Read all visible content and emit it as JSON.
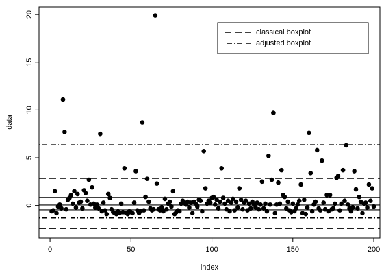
{
  "chart_data": {
    "type": "scatter",
    "xlabel": "index",
    "ylabel": "data",
    "x": [
      1,
      2,
      3,
      4,
      5,
      6,
      7,
      8,
      9,
      10,
      11,
      12,
      13,
      14,
      15,
      16,
      17,
      18,
      19,
      20,
      21,
      22,
      23,
      24,
      25,
      26,
      27,
      28,
      29,
      30,
      31,
      32,
      33,
      34,
      35,
      36,
      37,
      38,
      39,
      40,
      41,
      42,
      43,
      44,
      45,
      46,
      47,
      48,
      49,
      50,
      51,
      52,
      53,
      54,
      55,
      56,
      57,
      58,
      59,
      60,
      61,
      62,
      63,
      64,
      65,
      66,
      67,
      68,
      69,
      70,
      71,
      72,
      73,
      74,
      75,
      76,
      77,
      78,
      79,
      80,
      81,
      82,
      83,
      84,
      85,
      86,
      87,
      88,
      89,
      90,
      91,
      92,
      93,
      94,
      95,
      96,
      97,
      98,
      99,
      100,
      101,
      102,
      103,
      104,
      105,
      106,
      107,
      108,
      109,
      110,
      111,
      112,
      113,
      114,
      115,
      116,
      117,
      118,
      119,
      120,
      121,
      122,
      123,
      124,
      125,
      126,
      127,
      128,
      129,
      130,
      131,
      132,
      133,
      134,
      135,
      136,
      137,
      138,
      139,
      140,
      141,
      142,
      143,
      144,
      145,
      146,
      147,
      148,
      149,
      150,
      151,
      152,
      153,
      154,
      155,
      156,
      157,
      158,
      159,
      160,
      161,
      162,
      163,
      164,
      165,
      166,
      167,
      168,
      169,
      170,
      171,
      172,
      173,
      174,
      175,
      176,
      177,
      178,
      179,
      180,
      181,
      182,
      183,
      184,
      185,
      186,
      187,
      188,
      189,
      190,
      191,
      192,
      193,
      194,
      195,
      196,
      197,
      198,
      199,
      200
    ],
    "values": [
      -0.6,
      -0.5,
      1.5,
      -0.8,
      -0.1,
      0.1,
      -0.3,
      11.1,
      7.7,
      -0.4,
      0.6,
      0.8,
      1.1,
      0.2,
      1.5,
      -0.2,
      1.2,
      0.3,
      0.4,
      -0.3,
      1.6,
      1.3,
      0.5,
      2.7,
      0.1,
      1.9,
      0.2,
      -0.2,
      0.1,
      -0.3,
      7.5,
      -0.6,
      0.3,
      -0.5,
      -0.9,
      1.2,
      0.8,
      -0.4,
      -0.7,
      -0.8,
      -0.9,
      -0.6,
      -0.8,
      0.2,
      -0.7,
      3.9,
      -0.8,
      -0.9,
      -0.6,
      -0.7,
      -0.8,
      0.3,
      3.6,
      -0.5,
      -0.8,
      -0.6,
      8.7,
      -0.5,
      0.9,
      2.8,
      0.4,
      -0.3,
      -0.5,
      -0.4,
      19.9,
      2.3,
      -0.4,
      -0.5,
      -0.2,
      -0.6,
      0.7,
      -0.4,
      0.2,
      0.4,
      -0.1,
      1.5,
      -0.9,
      -0.7,
      -0.5,
      -0.6,
      0.2,
      0.5,
      0.3,
      0.1,
      0.4,
      -0.2,
      0.3,
      -0.8,
      0.4,
      0.2,
      -0.1,
      0.6,
      0.5,
      -0.6,
      5.7,
      1.8,
      0.2,
      0.5,
      0.3,
      0.8,
      0.9,
      0.1,
      0.6,
      -0.3,
      0.4,
      3.9,
      0.8,
      0.2,
      -0.4,
      0.5,
      -0.6,
      0.3,
      0.7,
      -0.5,
      0.4,
      -0.2,
      1.8,
      0.6,
      -0.4,
      0.3,
      0.5,
      -0.5,
      0.2,
      -0.3,
      0.4,
      0.1,
      -0.2,
      0.3,
      -0.4,
      0.1,
      2.5,
      -0.3,
      0.2,
      -0.6,
      5.2,
      0.1,
      2.7,
      9.7,
      -0.8,
      0.1,
      2.4,
      0.2,
      3.7,
      1.1,
      0.9,
      -0.3,
      0.4,
      -0.5,
      -0.7,
      0.2,
      -0.6,
      -0.3,
      0.1,
      0.5,
      2.2,
      -0.8,
      0.6,
      -0.9,
      -0.2,
      7.6,
      3.4,
      -0.6,
      0.1,
      0.4,
      5.8,
      -0.3,
      -0.5,
      4.7,
      0.3,
      -0.4,
      1.1,
      -0.6,
      1.1,
      -0.4,
      -0.3,
      0.2,
      2.9,
      3.1,
      -0.5,
      0.2,
      3.7,
      0.5,
      6.3,
      0.1,
      -0.3,
      -0.6,
      -0.2,
      3.6,
      1.7,
      -0.3,
      0.9,
      0.4,
      -0.8,
      0.2,
      0.3,
      -0.2,
      2.2,
      0.5,
      1.8,
      -0.1
    ],
    "color": "#000000",
    "xlim": [
      -6.8,
      203.8
    ],
    "xticks": [
      0,
      50,
      100,
      150,
      200
    ],
    "ylim": [
      -3.4,
      20.8
    ],
    "yticks": [
      0,
      5,
      10,
      15,
      20
    ],
    "hlines": [
      0.85,
      0.05,
      -0.45
    ],
    "lines": [
      {
        "name": "classical boxplot",
        "style": "dashed",
        "values": [
          2.85,
          -2.4
        ]
      },
      {
        "name": "adjusted boxplot",
        "style": "dotdash",
        "values": [
          6.35,
          -1.3
        ]
      }
    ],
    "legend": "top-right"
  }
}
